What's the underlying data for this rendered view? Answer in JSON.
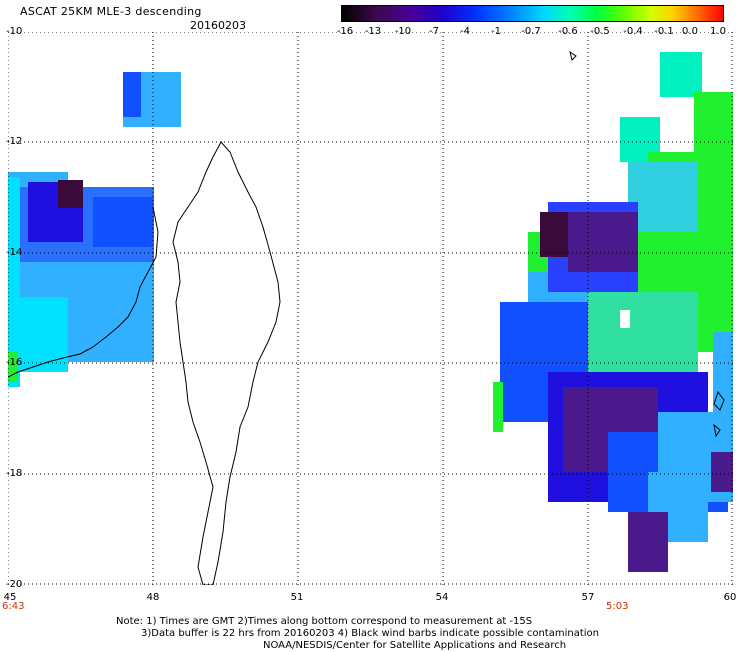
{
  "header": {
    "title": "ASCAT 25KM MLE-3 descending",
    "date": "20160203"
  },
  "colorbar": {
    "labels": [
      "-16",
      "-13",
      "-10",
      "-7",
      "-4",
      "-1",
      "-0.7",
      "-0.6",
      "-0.5",
      "-0.4",
      "-0.1",
      "0.0",
      "1.0"
    ]
  },
  "map": {
    "lat_labels": [
      "-10",
      "-12",
      "-14",
      "-16",
      "-18",
      "-20"
    ],
    "lon_labels": [
      "45",
      "48",
      "51",
      "54",
      "57",
      "60"
    ],
    "pass_times": [
      "6:43",
      "5:03"
    ],
    "colors": {
      "dark_purple": "#3a0a3a",
      "purple": "#4a1a8c",
      "deep_blue": "#2010e0",
      "blue": "#1050ff",
      "light_blue": "#30b0ff",
      "cyan": "#00e0ff",
      "teal": "#00f0c0",
      "green": "#20f030",
      "coast": "#000000"
    }
  },
  "notes": {
    "line1": "Note: 1) Times are GMT 2)Times along bottom correspond to measurement at -15S",
    "line2": "3)Data buffer is 22 hrs from 20160203 4) Black wind barbs indicate possible contamination",
    "line3": "NOAA/NESDIS/Center for Satellite Applications and Research"
  }
}
